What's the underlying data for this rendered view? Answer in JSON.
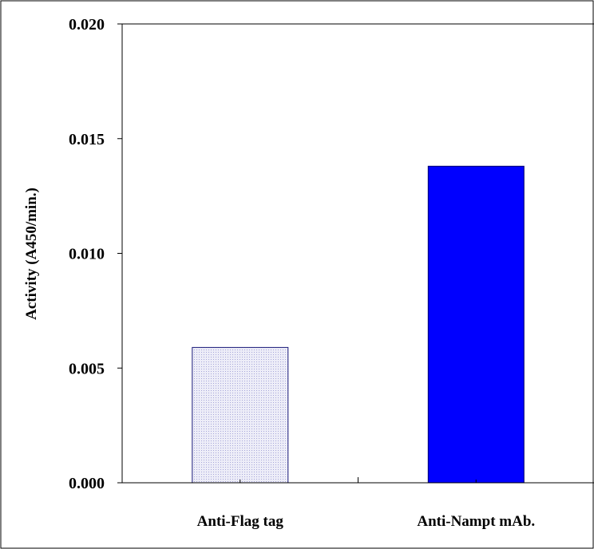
{
  "chart_data": {
    "type": "bar",
    "title": "",
    "xlabel": "",
    "ylabel": "Activity (A450/min.)",
    "categories": [
      "Anti-Flag tag",
      "Anti-Nampt mAb."
    ],
    "values": [
      0.0059,
      0.0138
    ],
    "ylim": [
      0,
      0.02
    ],
    "yticks": [
      "0.000",
      "0.005",
      "0.010",
      "0.015",
      "0.020"
    ],
    "grid": false,
    "legend": "none",
    "colors": {
      "bars_fill": [
        "#e8e8f6",
        "#0000ff"
      ],
      "bars_stroke": [
        "#1a1a7a",
        "#00006e"
      ],
      "axis": "#000000",
      "frame": "#000000"
    }
  }
}
